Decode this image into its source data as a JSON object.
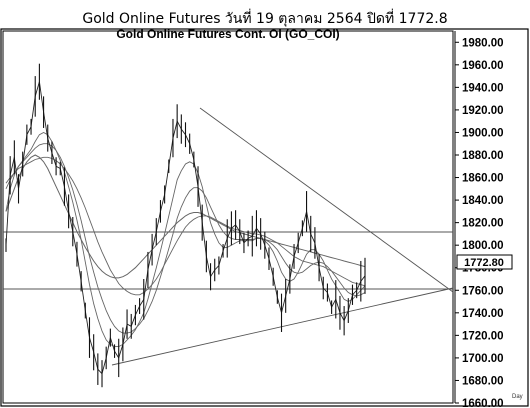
{
  "title": "Gold Online Futures วันที่ 19 ตุลาคม 2564 ปิดที่ 1772.8",
  "chart_data": {
    "type": "line",
    "subtitle": "Gold Online Futures Cont. OI (GO_COI)",
    "ylim": [
      1660,
      1990
    ],
    "yticks": [
      1660,
      1680,
      1700,
      1720,
      1740,
      1760,
      1780,
      1800,
      1820,
      1840,
      1860,
      1880,
      1900,
      1920,
      1940,
      1960,
      1980
    ],
    "ytick_labels": [
      "1660.00",
      "1680.00",
      "1700.00",
      "1720.00",
      "1740.00",
      "1760.00",
      "1780.00",
      "1800.00",
      "1820.00",
      "1840.00",
      "1860.00",
      "1880.00",
      "1900.00",
      "1920.00",
      "1940.00",
      "1960.00",
      "1980.00"
    ],
    "last_price_label": "1772.80",
    "last_price": 1772.8,
    "xlabel": "Day",
    "grid": false,
    "series": [
      {
        "values": [
          1800,
          1862,
          1878,
          1850,
          1872,
          1898,
          1905,
          1932,
          1945,
          1918,
          1895,
          1882,
          1870,
          1868,
          1852,
          1830,
          1812,
          1792,
          1768,
          1742,
          1718,
          1705,
          1690,
          1686,
          1700,
          1718,
          1706,
          1700,
          1712,
          1730,
          1728,
          1738,
          1746,
          1752,
          1778,
          1796,
          1812,
          1830,
          1845,
          1870,
          1895,
          1910,
          1903,
          1898,
          1890,
          1876,
          1852,
          1820,
          1790,
          1772,
          1778,
          1782,
          1795,
          1806,
          1815,
          1818,
          1812,
          1802,
          1806,
          1808,
          1815,
          1810,
          1800,
          1788,
          1772,
          1754,
          1740,
          1755,
          1770,
          1790,
          1802,
          1815,
          1830,
          1810,
          1802,
          1780,
          1762,
          1758,
          1745,
          1752,
          1740,
          1733,
          1742,
          1756,
          1760,
          1768,
          1772.8
        ]
      },
      {
        "values": [
          1830,
          1850,
          1862,
          1870,
          1875,
          1880,
          1885,
          1892,
          1898,
          1900,
          1898,
          1892,
          1884,
          1875,
          1865,
          1852,
          1838,
          1822,
          1805,
          1785,
          1765,
          1748,
          1735,
          1724,
          1716,
          1712,
          1710,
          1710,
          1712,
          1716,
          1720,
          1725,
          1732,
          1740,
          1752,
          1766,
          1780,
          1795,
          1810,
          1826,
          1842,
          1858,
          1866,
          1872,
          1874,
          1872,
          1864,
          1852,
          1836,
          1820,
          1810,
          1802,
          1798,
          1798,
          1800,
          1802,
          1804,
          1804,
          1804,
          1804,
          1806,
          1806,
          1804,
          1800,
          1794,
          1786,
          1776,
          1770,
          1768,
          1770,
          1776,
          1784,
          1792,
          1796,
          1796,
          1792,
          1786,
          1778,
          1770,
          1764,
          1758,
          1752,
          1750,
          1752,
          1756,
          1760,
          1764
        ]
      },
      {
        "values": [
          1850,
          1858,
          1864,
          1870,
          1874,
          1878,
          1882,
          1886,
          1889,
          1890,
          1890,
          1888,
          1884,
          1878,
          1870,
          1860,
          1849,
          1836,
          1822,
          1806,
          1790,
          1776,
          1763,
          1752,
          1742,
          1734,
          1728,
          1724,
          1722,
          1722,
          1723,
          1726,
          1730,
          1735,
          1742,
          1750,
          1760,
          1772,
          1784,
          1797,
          1810,
          1824,
          1834,
          1842,
          1848,
          1851,
          1851,
          1848,
          1842,
          1834,
          1826,
          1818,
          1812,
          1808,
          1806,
          1805,
          1805,
          1805,
          1805,
          1805,
          1806,
          1806,
          1805,
          1803,
          1800,
          1796,
          1790,
          1784,
          1779,
          1776,
          1775,
          1776,
          1779,
          1782,
          1784,
          1785,
          1784,
          1781,
          1777,
          1772,
          1767,
          1762,
          1758,
          1756,
          1755,
          1756,
          1758
        ]
      },
      {
        "values": [
          1855,
          1860,
          1864,
          1868,
          1870,
          1872,
          1874,
          1876,
          1877,
          1878,
          1878,
          1877,
          1875,
          1872,
          1868,
          1863,
          1857,
          1850,
          1842,
          1833,
          1823,
          1813,
          1803,
          1794,
          1786,
          1778,
          1772,
          1766,
          1762,
          1759,
          1757,
          1756,
          1756,
          1758,
          1761,
          1765,
          1770,
          1776,
          1783,
          1790,
          1797,
          1804,
          1810,
          1816,
          1820,
          1823,
          1825,
          1826,
          1826,
          1825,
          1823,
          1821,
          1819,
          1817,
          1815,
          1814,
          1813,
          1812,
          1811,
          1810,
          1810,
          1809,
          1808,
          1806,
          1804,
          1802,
          1799,
          1796,
          1793,
          1790,
          1788,
          1786,
          1785,
          1784,
          1783,
          1782,
          1781,
          1779,
          1777,
          1775,
          1773,
          1771,
          1769,
          1767,
          1766,
          1765,
          1764
        ]
      },
      {
        "values": [
          1830,
          1840,
          1850,
          1860,
          1868,
          1874,
          1878,
          1880,
          1878,
          1874,
          1868,
          1860,
          1852,
          1844,
          1836,
          1828,
          1820,
          1812,
          1805,
          1798,
          1792,
          1786,
          1781,
          1777,
          1774,
          1772,
          1771,
          1771,
          1772,
          1774,
          1777,
          1780,
          1784,
          1788,
          1792,
          1796,
          1800,
          1804,
          1808,
          1812,
          1816,
          1820,
          1823,
          1826,
          1828,
          1829,
          1829,
          1828,
          1826,
          1824,
          1822,
          1820,
          1818,
          1816,
          1814,
          1812,
          1811,
          1810,
          1809,
          1808,
          1807,
          1806,
          1805,
          1804,
          1803,
          1802,
          1801,
          1800,
          1799,
          1798,
          1797,
          1796,
          1795,
          1794,
          1793,
          1792,
          1791,
          1790,
          1789,
          1788,
          1787,
          1786,
          1785,
          1784,
          1783,
          1782,
          1781
        ]
      }
    ]
  }
}
